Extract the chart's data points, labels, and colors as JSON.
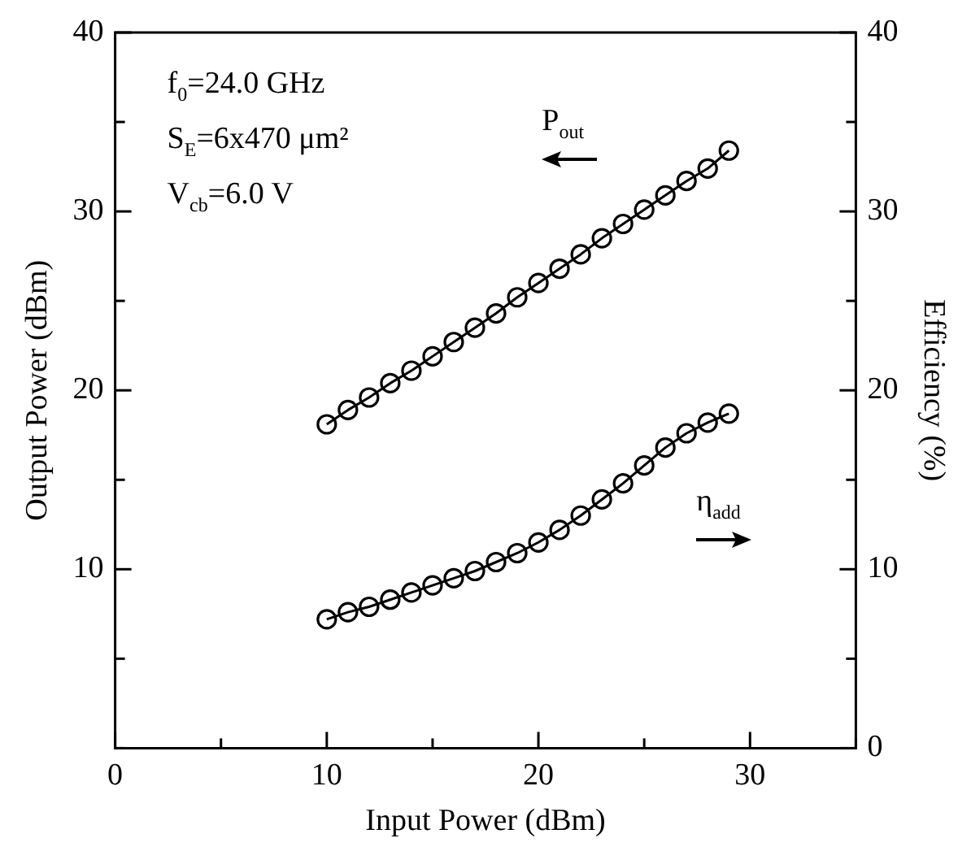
{
  "chart_data": {
    "type": "line",
    "xlabel": "Input Power (dBm)",
    "ylabel": "Output Power (dBm)",
    "y2label": "Efficiency (%)",
    "x": [
      10,
      11,
      12,
      13,
      14,
      15,
      16,
      17,
      18,
      19,
      20,
      21,
      22,
      23,
      24,
      25,
      26,
      27,
      28,
      29
    ],
    "series": [
      {
        "name": "P$_{out}$",
        "color": "#000000",
        "axis": "y",
        "values": [
          18.1,
          18.9,
          19.6,
          20.4,
          21.1,
          21.9,
          22.7,
          23.5,
          24.3,
          25.2,
          26.0,
          26.8,
          27.6,
          28.5,
          29.3,
          30.1,
          30.9,
          31.7,
          32.4,
          33.4
        ]
      },
      {
        "name": "η$_{add}$",
        "color": "#000000",
        "axis": "y2",
        "values": [
          7.2,
          7.6,
          7.9,
          8.3,
          8.7,
          9.1,
          9.5,
          9.9,
          10.4,
          10.9,
          11.5,
          12.2,
          13.0,
          13.9,
          14.8,
          15.8,
          16.8,
          17.6,
          18.2,
          18.7
        ]
      }
    ],
    "xlim": [
      0,
      35
    ],
    "xticks": [
      0,
      {
        "value": 5,
        "label": null
      },
      10,
      {
        "value": 15,
        "label": null
      },
      20,
      {
        "value": 25,
        "label": null
      },
      30,
      {
        "value": 35,
        "label": null
      }
    ],
    "ylim": [
      0,
      40
    ],
    "yticks": [
      {
        "value": 0,
        "label": null
      },
      {
        "value": 5,
        "label": null
      },
      10,
      {
        "value": 15,
        "label": null
      },
      20,
      {
        "value": 25,
        "label": null
      },
      30,
      {
        "value": 35,
        "label": null
      },
      40
    ],
    "y2lim": [
      0,
      40
    ],
    "y2ticks": [
      0,
      {
        "value": 5,
        "label": null
      },
      10,
      {
        "value": 15,
        "label": null
      },
      20,
      {
        "value": 25,
        "label": null
      },
      30,
      {
        "value": 35,
        "label": null
      },
      40
    ],
    "annotations": [
      "f$_{0}$=24.0 GHz",
      "S$_{E}$=6x470 μm²",
      "V$_{cb}$=6.0 V"
    ],
    "marker": "circle",
    "line_style": "solid",
    "grid": false,
    "legend": false
  }
}
